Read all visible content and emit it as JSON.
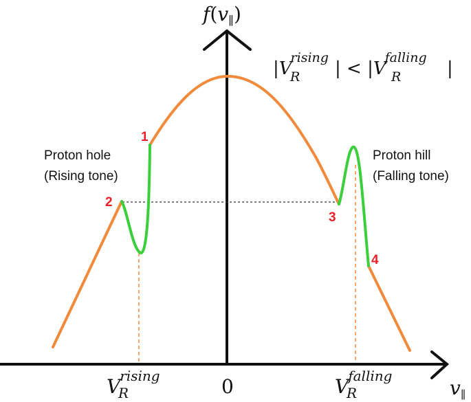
{
  "y_axis_label": {
    "func": "f",
    "paren_open": "(",
    "var": "v",
    "sub": "∥",
    "paren_close": ")"
  },
  "x_axis_label": {
    "var": "v",
    "sub": "∥"
  },
  "origin_label": "0",
  "relation": {
    "left_bar": "|",
    "left_var": "V",
    "left_sub": "R",
    "left_sup": "rising",
    "op": "| < |",
    "right_var": "V",
    "right_sub": "R",
    "right_sup": "falling",
    "right_bar": "|"
  },
  "rising_tick": {
    "var": "V",
    "sub": "R",
    "sup": "rising"
  },
  "falling_tick": {
    "var": "V",
    "sub": "R",
    "sup": "falling"
  },
  "proton_hole": {
    "line1": "Proton hole",
    "line2": "(Rising tone)"
  },
  "proton_hill": {
    "line1": "Proton hill",
    "line2": "(Falling tone)"
  },
  "markers": [
    "1",
    "2",
    "3",
    "4"
  ],
  "colors": {
    "background_curve": "#f28a3c",
    "perturbation": "#3ccf3c",
    "marker": "#e8202a",
    "axis": "#111111",
    "dashed_vertical": "#f28a3c",
    "dashed_horizontal": "#333333"
  }
}
